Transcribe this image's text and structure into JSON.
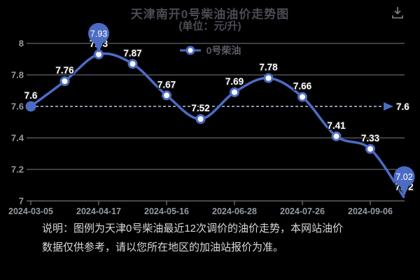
{
  "header": {
    "title": "天津南开0号柴油油价走势图",
    "subtitle": "(单位：元/升)"
  },
  "toolbar": {
    "download_icon": "download-icon"
  },
  "legend": {
    "series_label": "0号柴油"
  },
  "colors": {
    "background": "#000000",
    "line": "#4c6cc4",
    "pin": "#4c6cc4",
    "marker_fill": "#ffffff",
    "grid": "#8e929b",
    "axis_text": "#949aa3",
    "value_label": "#ffffff",
    "title_text": "#4a4b54",
    "note_text": "#d9d9d9",
    "reference_dash": "#b9c4ea"
  },
  "chart_data": {
    "type": "line",
    "title": "天津南开0号柴油油价走势图",
    "subtitle": "(单位：元/升)",
    "series": [
      {
        "name": "0号柴油",
        "values": [
          7.6,
          7.76,
          7.93,
          7.87,
          7.67,
          7.52,
          7.69,
          7.78,
          7.66,
          7.41,
          7.33,
          7.02
        ]
      }
    ],
    "x_tick_labels": [
      "2024-03-05",
      "2024-04-17",
      "2024-05-16",
      "2024-06-28",
      "2024-07-26",
      "2024-09-06"
    ],
    "x_label_every_n_points": 2,
    "y_tick_labels": [
      "8",
      "7.8",
      "7.6",
      "7.4",
      "7.2",
      "7"
    ],
    "y_ticks": [
      8,
      7.8,
      7.6,
      7.4,
      7.2,
      7
    ],
    "ylim": [
      7,
      8
    ],
    "grid": true,
    "smooth": true,
    "legend_position": "top-center",
    "reference_line": {
      "value": 7.6,
      "label": "7.6"
    },
    "highlight": {
      "max_value_pin": "7.93",
      "min_value_pin": "7.02"
    }
  },
  "note": {
    "line1": "说明：图例为天津0号柴油最近12次调价的油价走势，本网站油价",
    "line2": "数据仅供参考，请以您所在地区的加油站报价为准。"
  }
}
